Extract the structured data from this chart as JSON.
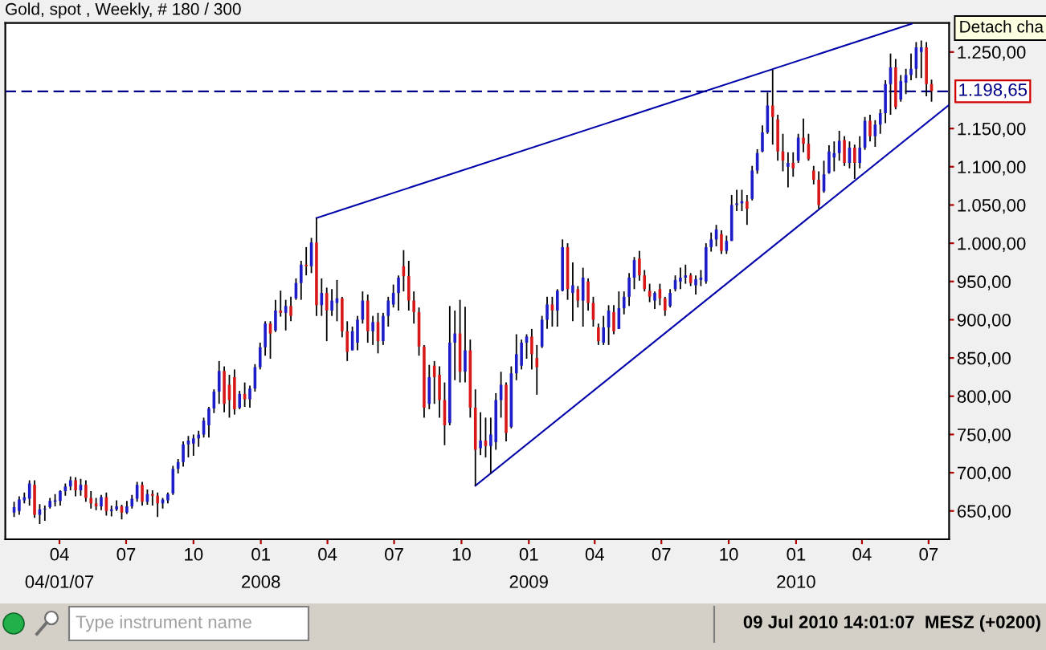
{
  "chart_data": {
    "type": "candlestick",
    "title": "Gold, spot , Weekly, # 180 / 300",
    "x": [
      "2007-01-29",
      "2007-02-05",
      "2007-02-12",
      "2007-02-19",
      "2007-02-26",
      "2007-03-05",
      "2007-03-12",
      "2007-03-19",
      "2007-03-26",
      "2007-04-02",
      "2007-04-09",
      "2007-04-16",
      "2007-04-23",
      "2007-04-30",
      "2007-05-07",
      "2007-05-14",
      "2007-05-21",
      "2007-05-28",
      "2007-06-04",
      "2007-06-11",
      "2007-06-18",
      "2007-06-25",
      "2007-07-02",
      "2007-07-09",
      "2007-07-16",
      "2007-07-23",
      "2007-07-30",
      "2007-08-06",
      "2007-08-13",
      "2007-08-20",
      "2007-08-27",
      "2007-09-03",
      "2007-09-10",
      "2007-09-17",
      "2007-09-24",
      "2007-10-01",
      "2007-10-08",
      "2007-10-15",
      "2007-10-22",
      "2007-10-29",
      "2007-11-05",
      "2007-11-12",
      "2007-11-19",
      "2007-11-26",
      "2007-12-03",
      "2007-12-10",
      "2007-12-17",
      "2007-12-24",
      "2007-12-31",
      "2008-01-07",
      "2008-01-14",
      "2008-01-21",
      "2008-01-28",
      "2008-02-04",
      "2008-02-11",
      "2008-02-18",
      "2008-02-25",
      "2008-03-03",
      "2008-03-10",
      "2008-03-17",
      "2008-03-24",
      "2008-03-31",
      "2008-04-07",
      "2008-04-14",
      "2008-04-21",
      "2008-04-28",
      "2008-05-05",
      "2008-05-12",
      "2008-05-19",
      "2008-05-26",
      "2008-06-02",
      "2008-06-09",
      "2008-06-16",
      "2008-06-23",
      "2008-06-30",
      "2008-07-07",
      "2008-07-14",
      "2008-07-21",
      "2008-07-28",
      "2008-08-04",
      "2008-08-11",
      "2008-08-18",
      "2008-08-25",
      "2008-09-01",
      "2008-09-08",
      "2008-09-15",
      "2008-09-22",
      "2008-09-29",
      "2008-10-06",
      "2008-10-13",
      "2008-10-20",
      "2008-10-27",
      "2008-11-03",
      "2008-11-10",
      "2008-11-17",
      "2008-11-24",
      "2008-12-01",
      "2008-12-08",
      "2008-12-15",
      "2008-12-22",
      "2008-12-29",
      "2009-01-05",
      "2009-01-12",
      "2009-01-19",
      "2009-01-26",
      "2009-02-02",
      "2009-02-09",
      "2009-02-16",
      "2009-02-23",
      "2009-03-02",
      "2009-03-09",
      "2009-03-16",
      "2009-03-23",
      "2009-03-30",
      "2009-04-06",
      "2009-04-13",
      "2009-04-20",
      "2009-04-27",
      "2009-05-04",
      "2009-05-11",
      "2009-05-18",
      "2009-05-25",
      "2009-06-01",
      "2009-06-08",
      "2009-06-15",
      "2009-06-22",
      "2009-06-29",
      "2009-07-06",
      "2009-07-13",
      "2009-07-20",
      "2009-07-27",
      "2009-08-03",
      "2009-08-10",
      "2009-08-17",
      "2009-08-24",
      "2009-08-31",
      "2009-09-07",
      "2009-09-14",
      "2009-09-21",
      "2009-09-28",
      "2009-10-05",
      "2009-10-12",
      "2009-10-19",
      "2009-10-26",
      "2009-11-02",
      "2009-11-09",
      "2009-11-16",
      "2009-11-23",
      "2009-11-30",
      "2009-12-07",
      "2009-12-14",
      "2009-12-21",
      "2009-12-28",
      "2010-01-04",
      "2010-01-11",
      "2010-01-18",
      "2010-01-25",
      "2010-02-01",
      "2010-02-08",
      "2010-02-15",
      "2010-02-22",
      "2010-03-01",
      "2010-03-08",
      "2010-03-15",
      "2010-03-22",
      "2010-03-29",
      "2010-04-05",
      "2010-04-12",
      "2010-04-19",
      "2010-04-26",
      "2010-05-03",
      "2010-05-10",
      "2010-05-17",
      "2010-05-24",
      "2010-05-31",
      "2010-06-07",
      "2010-06-14",
      "2010-06-21",
      "2010-06-28",
      "2010-07-05"
    ],
    "ohlc": [
      [
        648,
        662,
        642,
        655
      ],
      [
        650,
        669,
        645,
        665
      ],
      [
        664,
        674,
        660,
        668
      ],
      [
        666,
        690,
        657,
        686
      ],
      [
        684,
        690,
        641,
        645
      ],
      [
        645,
        659,
        633,
        652
      ],
      [
        652,
        657,
        637,
        653
      ],
      [
        655,
        667,
        653,
        663
      ],
      [
        662,
        672,
        656,
        664
      ],
      [
        663,
        677,
        657,
        676
      ],
      [
        676,
        686,
        670,
        682
      ],
      [
        682,
        695,
        677,
        690
      ],
      [
        690,
        694,
        669,
        677
      ],
      [
        677,
        692,
        670,
        684
      ],
      [
        684,
        690,
        662,
        667
      ],
      [
        667,
        676,
        653,
        660
      ],
      [
        660,
        667,
        651,
        656
      ],
      [
        656,
        671,
        651,
        668
      ],
      [
        668,
        674,
        644,
        650
      ],
      [
        650,
        657,
        643,
        652
      ],
      [
        652,
        664,
        650,
        656
      ],
      [
        656,
        658,
        639,
        648
      ],
      [
        648,
        663,
        646,
        656
      ],
      [
        656,
        671,
        653,
        666
      ],
      [
        666,
        688,
        662,
        684
      ],
      [
        684,
        688,
        657,
        662
      ],
      [
        662,
        678,
        658,
        672
      ],
      [
        672,
        677,
        657,
        670
      ],
      [
        670,
        674,
        642,
        660
      ],
      [
        660,
        667,
        653,
        665
      ],
      [
        664,
        674,
        660,
        672
      ],
      [
        673,
        709,
        671,
        705
      ],
      [
        705,
        718,
        699,
        714
      ],
      [
        714,
        741,
        708,
        737
      ],
      [
        737,
        748,
        720,
        742
      ],
      [
        738,
        750,
        722,
        745
      ],
      [
        745,
        755,
        734,
        750
      ],
      [
        750,
        772,
        746,
        768
      ],
      [
        762,
        786,
        746,
        784
      ],
      [
        784,
        809,
        778,
        806
      ],
      [
        806,
        846,
        790,
        833
      ],
      [
        833,
        839,
        779,
        790
      ],
      [
        815,
        828,
        772,
        795
      ],
      [
        825,
        835,
        776,
        783
      ],
      [
        785,
        807,
        783,
        803
      ],
      [
        803,
        818,
        786,
        796
      ],
      [
        796,
        814,
        785,
        810
      ],
      [
        810,
        842,
        806,
        838
      ],
      [
        838,
        870,
        835,
        864
      ],
      [
        864,
        898,
        853,
        895
      ],
      [
        895,
        898,
        849,
        882
      ],
      [
        886,
        926,
        884,
        912
      ],
      [
        912,
        938,
        904,
        909
      ],
      [
        909,
        926,
        886,
        918
      ],
      [
        918,
        930,
        898,
        905
      ],
      [
        928,
        954,
        926,
        948
      ],
      [
        948,
        977,
        926,
        972
      ],
      [
        972,
        995,
        958,
        970
      ],
      [
        970,
        1007,
        961,
        1001
      ],
      [
        1001,
        1033,
        905,
        919
      ],
      [
        919,
        954,
        905,
        935
      ],
      [
        935,
        942,
        872,
        912
      ],
      [
        912,
        940,
        905,
        925
      ],
      [
        922,
        952,
        898,
        928
      ],
      [
        928,
        930,
        877,
        885
      ],
      [
        885,
        898,
        846,
        858
      ],
      [
        860,
        891,
        860,
        885
      ],
      [
        870,
        905,
        860,
        900
      ],
      [
        900,
        937,
        895,
        925
      ],
      [
        925,
        933,
        870,
        885
      ],
      [
        885,
        905,
        867,
        897
      ],
      [
        897,
        909,
        856,
        872
      ],
      [
        872,
        909,
        867,
        905
      ],
      [
        905,
        930,
        891,
        925
      ],
      [
        920,
        946,
        916,
        935
      ],
      [
        935,
        958,
        912,
        955
      ],
      [
        970,
        991,
        937,
        957
      ],
      [
        957,
        977,
        912,
        925
      ],
      [
        925,
        937,
        895,
        910
      ],
      [
        910,
        916,
        853,
        865
      ],
      [
        865,
        867,
        772,
        785
      ],
      [
        790,
        841,
        783,
        825
      ],
      [
        840,
        846,
        790,
        825
      ],
      [
        828,
        839,
        772,
        795
      ],
      [
        795,
        818,
        736,
        762
      ],
      [
        765,
        918,
        762,
        870
      ],
      [
        870,
        912,
        821,
        882
      ],
      [
        882,
        926,
        818,
        832
      ],
      [
        832,
        917,
        818,
        860
      ],
      [
        860,
        874,
        772,
        785
      ],
      [
        785,
        809,
        683,
        730
      ],
      [
        732,
        779,
        723,
        742
      ],
      [
        742,
        772,
        720,
        735
      ],
      [
        735,
        772,
        699,
        750
      ],
      [
        740,
        804,
        730,
        795
      ],
      [
        795,
        832,
        772,
        815
      ],
      [
        815,
        818,
        741,
        752
      ],
      [
        760,
        839,
        758,
        830
      ],
      [
        830,
        881,
        821,
        855
      ],
      [
        840,
        874,
        835,
        870
      ],
      [
        870,
        881,
        849,
        878
      ],
      [
        878,
        888,
        835,
        855
      ],
      [
        850,
        867,
        802,
        838
      ],
      [
        865,
        905,
        863,
        900
      ],
      [
        900,
        930,
        888,
        920
      ],
      [
        920,
        930,
        891,
        912
      ],
      [
        912,
        940,
        891,
        938
      ],
      [
        938,
        1005,
        937,
        995
      ],
      [
        995,
        1000,
        926,
        940
      ],
      [
        935,
        975,
        898,
        945
      ],
      [
        940,
        944,
        916,
        925
      ],
      [
        925,
        968,
        891,
        955
      ],
      [
        950,
        954,
        912,
        922
      ],
      [
        922,
        930,
        891,
        900
      ],
      [
        890,
        895,
        867,
        872
      ],
      [
        870,
        905,
        867,
        890
      ],
      [
        890,
        919,
        867,
        912
      ],
      [
        910,
        919,
        881,
        885
      ],
      [
        888,
        937,
        888,
        915
      ],
      [
        915,
        937,
        907,
        930
      ],
      [
        930,
        961,
        918,
        955
      ],
      [
        955,
        982,
        940,
        978
      ],
      [
        980,
        990,
        951,
        958
      ],
      [
        958,
        965,
        937,
        940
      ],
      [
        938,
        947,
        923,
        930
      ],
      [
        925,
        937,
        914,
        935
      ],
      [
        940,
        947,
        919,
        928
      ],
      [
        928,
        930,
        905,
        912
      ],
      [
        918,
        940,
        916,
        935
      ],
      [
        940,
        958,
        937,
        952
      ],
      [
        950,
        968,
        940,
        955
      ],
      [
        955,
        972,
        947,
        958
      ],
      [
        958,
        961,
        944,
        948
      ],
      [
        945,
        958,
        933,
        953
      ],
      [
        952,
        965,
        944,
        955
      ],
      [
        950,
        1000,
        947,
        995
      ],
      [
        995,
        1014,
        989,
        1005
      ],
      [
        1005,
        1024,
        996,
        1018
      ],
      [
        1012,
        1017,
        986,
        990
      ],
      [
        990,
        1010,
        986,
        1003
      ],
      [
        1003,
        1063,
        1003,
        1050
      ],
      [
        1050,
        1070,
        1042,
        1052
      ],
      [
        1052,
        1070,
        1042,
        1055
      ],
      [
        1055,
        1063,
        1024,
        1045
      ],
      [
        1058,
        1101,
        1056,
        1095
      ],
      [
        1095,
        1123,
        1091,
        1118
      ],
      [
        1120,
        1154,
        1119,
        1145
      ],
      [
        1145,
        1197,
        1143,
        1180
      ],
      [
        1180,
        1227,
        1129,
        1165
      ],
      [
        1162,
        1168,
        1108,
        1120
      ],
      [
        1120,
        1143,
        1094,
        1108
      ],
      [
        1100,
        1119,
        1073,
        1105
      ],
      [
        1105,
        1119,
        1087,
        1098
      ],
      [
        1108,
        1143,
        1105,
        1138
      ],
      [
        1138,
        1163,
        1119,
        1130
      ],
      [
        1130,
        1143,
        1108,
        1110
      ],
      [
        1095,
        1101,
        1077,
        1083
      ],
      [
        1083,
        1094,
        1045,
        1050
      ],
      [
        1068,
        1108,
        1066,
        1090
      ],
      [
        1092,
        1128,
        1091,
        1120
      ],
      [
        1112,
        1133,
        1094,
        1118
      ],
      [
        1118,
        1147,
        1108,
        1134
      ],
      [
        1135,
        1140,
        1101,
        1105
      ],
      [
        1105,
        1133,
        1098,
        1125
      ],
      [
        1125,
        1129,
        1084,
        1105
      ],
      [
        1105,
        1140,
        1098,
        1125
      ],
      [
        1125,
        1165,
        1122,
        1160
      ],
      [
        1160,
        1168,
        1133,
        1140
      ],
      [
        1140,
        1161,
        1126,
        1155
      ],
      [
        1155,
        1175,
        1143,
        1170
      ],
      [
        1170,
        1213,
        1157,
        1208
      ],
      [
        1208,
        1248,
        1168,
        1230
      ],
      [
        1230,
        1241,
        1175,
        1178
      ],
      [
        1188,
        1220,
        1185,
        1212
      ],
      [
        1210,
        1228,
        1195,
        1220
      ],
      [
        1220,
        1248,
        1213,
        1228
      ],
      [
        1228,
        1263,
        1216,
        1256
      ],
      [
        1250,
        1265,
        1216,
        1256
      ],
      [
        1256,
        1263,
        1192,
        1208
      ],
      [
        1208,
        1214,
        1185,
        1199
      ]
    ],
    "colors": [
      "#1c1cc8",
      "#1c1cc8",
      "#1c1cc8",
      "#1c1cc8",
      "#d81818",
      "#1c1cc8",
      "#1c1cc8",
      "#1c1cc8",
      "#1c1cc8",
      "#1c1cc8",
      "#1c1cc8",
      "#1c1cc8",
      "#d81818",
      "#1c1cc8",
      "#d81818",
      "#d81818",
      "#d81818",
      "#1c1cc8",
      "#d81818",
      "#1c1cc8",
      "#1c1cc8",
      "#d81818",
      "#1c1cc8",
      "#1c1cc8",
      "#1c1cc8",
      "#d81818",
      "#1c1cc8",
      "#d81818",
      "#d81818",
      "#1c1cc8",
      "#1c1cc8",
      "#1c1cc8",
      "#1c1cc8",
      "#1c1cc8",
      "#1c1cc8",
      "#1c1cc8",
      "#1c1cc8",
      "#1c1cc8",
      "#1c1cc8",
      "#1c1cc8",
      "#1c1cc8",
      "#d81818",
      "#d81818",
      "#d81818",
      "#1c1cc8",
      "#d81818",
      "#1c1cc8",
      "#1c1cc8",
      "#1c1cc8",
      "#1c1cc8",
      "#d81818",
      "#1c1cc8",
      "#d81818",
      "#1c1cc8",
      "#d81818",
      "#1c1cc8",
      "#1c1cc8",
      "#d81818",
      "#1c1cc8",
      "#d81818",
      "#1c1cc8",
      "#d81818",
      "#1c1cc8",
      "#1c1cc8",
      "#d81818",
      "#d81818",
      "#1c1cc8",
      "#1c1cc8",
      "#1c1cc8",
      "#d81818",
      "#1c1cc8",
      "#d81818",
      "#1c1cc8",
      "#1c1cc8",
      "#1c1cc8",
      "#1c1cc8",
      "#d81818",
      "#d81818",
      "#d81818",
      "#d81818",
      "#d81818",
      "#1c1cc8",
      "#d81818",
      "#d81818",
      "#d81818",
      "#1c1cc8",
      "#1c1cc8",
      "#d81818",
      "#1c1cc8",
      "#d81818",
      "#d81818",
      "#1c1cc8",
      "#d81818",
      "#1c1cc8",
      "#1c1cc8",
      "#1c1cc8",
      "#d81818",
      "#1c1cc8",
      "#1c1cc8",
      "#1c1cc8",
      "#1c1cc8",
      "#d81818",
      "#d81818",
      "#1c1cc8",
      "#1c1cc8",
      "#d81818",
      "#1c1cc8",
      "#1c1cc8",
      "#d81818",
      "#1c1cc8",
      "#d81818",
      "#1c1cc8",
      "#d81818",
      "#d81818",
      "#d81818",
      "#1c1cc8",
      "#1c1cc8",
      "#d81818",
      "#1c1cc8",
      "#1c1cc8",
      "#1c1cc8",
      "#1c1cc8",
      "#d81818",
      "#d81818",
      "#d81818",
      "#1c1cc8",
      "#d81818",
      "#d81818",
      "#1c1cc8",
      "#1c1cc8",
      "#1c1cc8",
      "#1c1cc8",
      "#d81818",
      "#1c1cc8",
      "#1c1cc8",
      "#1c1cc8",
      "#1c1cc8",
      "#1c1cc8",
      "#d81818",
      "#1c1cc8",
      "#1c1cc8",
      "#1c1cc8",
      "#1c1cc8",
      "#d81818",
      "#1c1cc8",
      "#1c1cc8",
      "#1c1cc8",
      "#1c1cc8",
      "#d81818",
      "#d81818",
      "#d81818",
      "#1c1cc8",
      "#d81818",
      "#1c1cc8",
      "#d81818",
      "#d81818",
      "#d81818",
      "#d81818",
      "#1c1cc8",
      "#1c1cc8",
      "#1c1cc8",
      "#1c1cc8",
      "#d81818",
      "#1c1cc8",
      "#d81818",
      "#1c1cc8",
      "#1c1cc8",
      "#d81818",
      "#1c1cc8",
      "#1c1cc8",
      "#1c1cc8",
      "#1c1cc8",
      "#d81818",
      "#1c1cc8",
      "#1c1cc8",
      "#1c1cc8",
      "#1c1cc8",
      "#1c1cc8",
      "#d81818",
      "#d81818"
    ],
    "series": [
      {
        "type": "line",
        "x": [
          "2008-03-17",
          "2010-06-08"
        ],
        "values": [
          1033,
          1287
        ],
        "color": "#0000aa"
      },
      {
        "type": "line",
        "x": [
          "2008-10-20",
          "2010-07-29"
        ],
        "values": [
          683,
          1181
        ],
        "color": "#0000aa"
      }
    ],
    "xlim": [
      "2007-01-17",
      "2010-07-29"
    ],
    "xticks": [
      {
        "value": "2007-04-01",
        "label": "04"
      },
      {
        "value": "2007-07-01",
        "label": "07"
      },
      {
        "value": "2007-10-01",
        "label": "10"
      },
      {
        "value": "2008-01-01",
        "label": "01"
      },
      {
        "value": "2008-04-01",
        "label": "04"
      },
      {
        "value": "2008-07-01",
        "label": "07"
      },
      {
        "value": "2008-10-01",
        "label": "10"
      },
      {
        "value": "2009-01-01",
        "label": "01"
      },
      {
        "value": "2009-04-01",
        "label": "04"
      },
      {
        "value": "2009-07-01",
        "label": "07"
      },
      {
        "value": "2009-10-01",
        "label": "10"
      },
      {
        "value": "2010-01-01",
        "label": "01"
      },
      {
        "value": "2010-04-01",
        "label": "04"
      },
      {
        "value": "2010-07-01",
        "label": "07"
      }
    ],
    "x2lim": [
      "2007-01-17",
      "2010-07-29"
    ],
    "x2ticks": [
      {
        "value": "2007-04-01",
        "label": "04/01/07"
      },
      {
        "value": "2008-01-01",
        "label": "2008"
      },
      {
        "value": "2009-01-01",
        "label": "2009"
      },
      {
        "value": "2010-01-01",
        "label": "2010"
      }
    ],
    "ylim": [
      613,
      1288
    ],
    "yticks": [
      {
        "value": 650,
        "label": "650,00"
      },
      {
        "value": 700,
        "label": "700,00"
      },
      {
        "value": 750,
        "label": "750,00"
      },
      {
        "value": 800,
        "label": "800,00"
      },
      {
        "value": 850,
        "label": "850,00"
      },
      {
        "value": 900,
        "label": "900,00"
      },
      {
        "value": 950,
        "label": "950,00"
      },
      {
        "value": 1000,
        "label": "1.000,00"
      },
      {
        "value": 1050,
        "label": "1.050,00"
      },
      {
        "value": 1100,
        "label": "1.100,00"
      },
      {
        "value": 1150,
        "label": "1.150,00"
      },
      {
        "value": 1250,
        "label": "1.250,00"
      }
    ],
    "ref_lines": [
      {
        "axis": "y",
        "value": 1198.65,
        "label": "1.198,65",
        "color": "#000088",
        "line_style": "dashed"
      }
    ],
    "annotations": [
      "Detach cha",
      "Type instrument name",
      "09 Jul 2010 14:01:07  MESZ (+0200)"
    ]
  }
}
